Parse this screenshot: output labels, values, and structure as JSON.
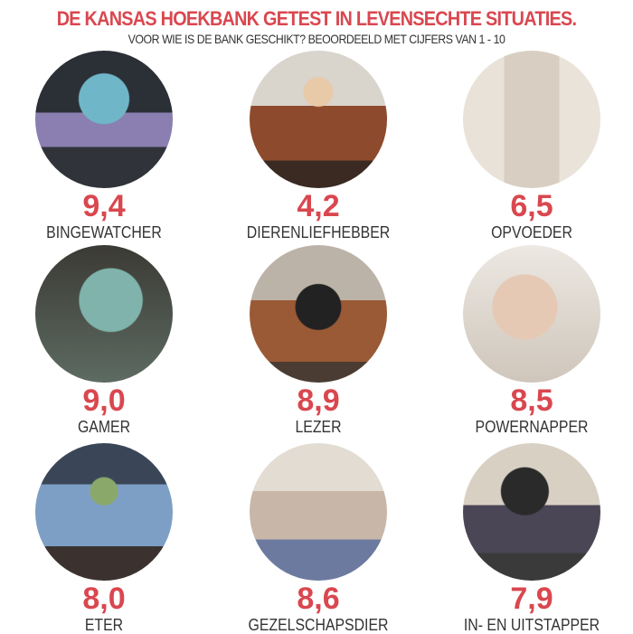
{
  "header": {
    "title": "DE KANSAS HOEKBANK GETEST IN LEVENSECHTE SITUATIES.",
    "subtitle": "VOOR WIE IS DE BANK GESCHIKT? BEOORDEELD MET CIJFERS VAN 1 - 10"
  },
  "colors": {
    "accent": "#d9474f",
    "text": "#333333"
  },
  "items": [
    {
      "score": "9,4",
      "label": "BINGEWATCHER",
      "photo": "couple-watching-tv-photo"
    },
    {
      "score": "4,2",
      "label": "DIERENLIEFHEBBER",
      "photo": "woman-with-dog-photo"
    },
    {
      "score": "6,5",
      "label": "OPVOEDER",
      "photo": "kids-jumping-on-sofa-photo"
    },
    {
      "score": "9,0",
      "label": "GAMER",
      "photo": "man-gaming-with-headset-photo"
    },
    {
      "score": "8,9",
      "label": "LEZER",
      "photo": "man-reading-book-photo"
    },
    {
      "score": "8,5",
      "label": "POWERNAPPER",
      "photo": "woman-sleeping-on-sofa-photo"
    },
    {
      "score": "8,0",
      "label": "ETER",
      "photo": "man-eating-bowl-photo"
    },
    {
      "score": "8,6",
      "label": "GEZELSCHAPSDIER",
      "photo": "friends-on-sofa-photo"
    },
    {
      "score": "7,9",
      "label": "IN- EN UITSTAPPER",
      "photo": "man-getting-up-from-sofa-photo"
    }
  ]
}
